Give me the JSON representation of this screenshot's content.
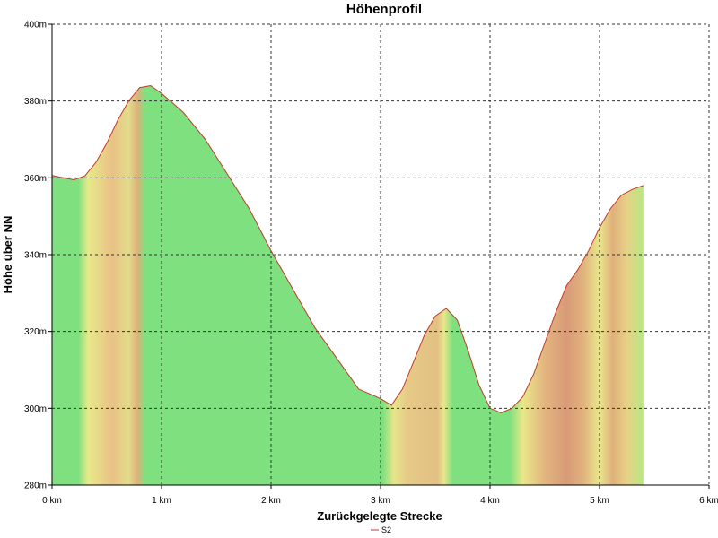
{
  "chart_data": {
    "type": "area",
    "title": "Höhenprofil",
    "xlabel": "Zurückgelegte Strecke",
    "ylabel": "Höhe über NN",
    "xlim": [
      0,
      6
    ],
    "ylim": [
      280,
      400
    ],
    "x_ticks": [
      0,
      1,
      2,
      3,
      4,
      5,
      6
    ],
    "x_tick_labels": [
      "0 km",
      "1 km",
      "2 km",
      "3 km",
      "4 km",
      "5 km",
      "6 km"
    ],
    "y_ticks": [
      280,
      300,
      320,
      340,
      360,
      380,
      400
    ],
    "y_tick_labels": [
      "280m",
      "300m",
      "320m",
      "340m",
      "360m",
      "380m",
      "400m"
    ],
    "grid": true,
    "legend_position": "bottom-center",
    "series": [
      {
        "name": "S2",
        "line_color": "#c0392b",
        "x": [
          0,
          0.1,
          0.2,
          0.3,
          0.4,
          0.5,
          0.6,
          0.7,
          0.8,
          0.9,
          1.0,
          1.2,
          1.4,
          1.6,
          1.8,
          2.0,
          2.2,
          2.4,
          2.6,
          2.8,
          3.0,
          3.1,
          3.2,
          3.3,
          3.4,
          3.5,
          3.6,
          3.7,
          3.8,
          3.9,
          4.0,
          4.1,
          4.2,
          4.3,
          4.4,
          4.5,
          4.6,
          4.7,
          4.8,
          4.9,
          5.0,
          5.1,
          5.2,
          5.3,
          5.4
        ],
        "values": [
          360.6,
          360,
          359.5,
          360.5,
          364,
          369,
          375,
          380,
          383.5,
          384,
          382,
          377,
          370,
          361,
          352,
          341,
          331,
          321,
          313,
          305,
          302.5,
          300.8,
          305,
          312,
          319,
          324,
          326,
          323,
          315,
          306,
          300,
          298.8,
          300,
          303,
          309,
          317,
          325,
          332,
          336,
          341,
          347,
          352,
          355.5,
          357,
          358
        ]
      }
    ],
    "fill_gradient": {
      "direction": "horizontal",
      "stops": [
        {
          "x": 0.0,
          "color": "#7ee07e"
        },
        {
          "x": 0.24,
          "color": "#7ee07e"
        },
        {
          "x": 0.33,
          "color": "#e8e98a"
        },
        {
          "x": 0.55,
          "color": "#e9c186"
        },
        {
          "x": 0.7,
          "color": "#e2dc8a"
        },
        {
          "x": 0.78,
          "color": "#e0b07a"
        },
        {
          "x": 0.85,
          "color": "#7ee07e"
        },
        {
          "x": 3.02,
          "color": "#7ee07e"
        },
        {
          "x": 3.12,
          "color": "#e7e58a"
        },
        {
          "x": 3.25,
          "color": "#e6c987"
        },
        {
          "x": 3.52,
          "color": "#e2c084"
        },
        {
          "x": 3.58,
          "color": "#e8e68a"
        },
        {
          "x": 3.66,
          "color": "#7ee07e"
        },
        {
          "x": 4.18,
          "color": "#7ee07e"
        },
        {
          "x": 4.3,
          "color": "#e9e78a"
        },
        {
          "x": 4.5,
          "color": "#e2b57f"
        },
        {
          "x": 4.7,
          "color": "#d99a78"
        },
        {
          "x": 4.85,
          "color": "#e1b27e"
        },
        {
          "x": 5.0,
          "color": "#e9e78a"
        },
        {
          "x": 5.12,
          "color": "#e0b07b"
        },
        {
          "x": 5.25,
          "color": "#e6d186"
        },
        {
          "x": 5.4,
          "color": "#b8e883"
        }
      ]
    }
  }
}
